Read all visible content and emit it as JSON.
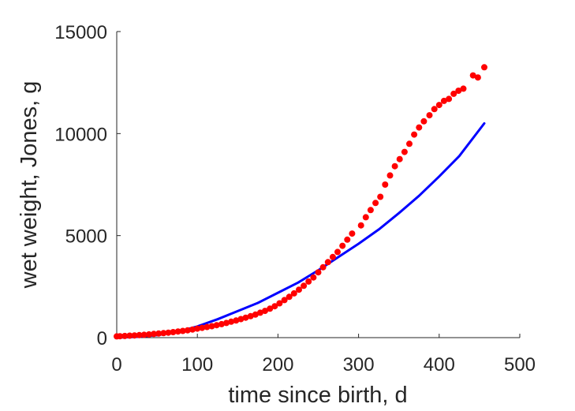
{
  "chart_data": {
    "type": "scatter",
    "title": "",
    "xlabel": "time since birth, d",
    "ylabel": "wet weight, Jones, g",
    "xlim": [
      0,
      500
    ],
    "ylim": [
      0,
      15000
    ],
    "xticks": [
      "0",
      "100",
      "200",
      "300",
      "400",
      "500"
    ],
    "yticks": [
      "0",
      "5000",
      "10000",
      "15000"
    ],
    "grid": false,
    "legend": "none",
    "series": [
      {
        "kind": "points",
        "color": "#ff0000",
        "x": [
          0,
          4,
          10,
          16,
          22,
          28,
          34,
          40,
          46,
          52,
          58,
          64,
          70,
          76,
          82,
          88,
          94,
          100,
          106,
          112,
          118,
          124,
          130,
          136,
          142,
          148,
          154,
          160,
          166,
          172,
          178,
          184,
          190,
          196,
          202,
          208,
          214,
          220,
          226,
          232,
          238,
          244,
          250,
          256,
          262,
          268,
          274,
          280,
          286,
          292,
          303,
          309,
          315,
          321,
          327,
          333,
          339,
          345,
          351,
          357,
          363,
          369,
          375,
          381,
          388,
          394,
          400,
          406,
          412,
          418,
          424,
          430,
          442,
          448,
          456
        ],
        "y": [
          60,
          70,
          80,
          95,
          110,
          125,
          140,
          160,
          180,
          200,
          220,
          245,
          270,
          300,
          330,
          360,
          400,
          440,
          480,
          520,
          560,
          610,
          660,
          720,
          780,
          840,
          910,
          980,
          1050,
          1130,
          1220,
          1310,
          1420,
          1540,
          1680,
          1840,
          2000,
          2170,
          2350,
          2540,
          2750,
          2950,
          3200,
          3450,
          3700,
          3950,
          4200,
          4500,
          4800,
          5100,
          5500,
          5900,
          6250,
          6600,
          6900,
          7500,
          7950,
          8400,
          8750,
          9100,
          9500,
          9950,
          10300,
          10600,
          10900,
          11200,
          11400,
          11600,
          11700,
          11950,
          12100,
          12200,
          12850,
          12750,
          13250
        ]
      },
      {
        "kind": "line",
        "color": "#0000ff",
        "x": [
          0,
          25,
          50,
          75,
          100,
          125,
          150,
          175,
          200,
          225,
          250,
          275,
          300,
          325,
          350,
          375,
          400,
          425,
          456
        ],
        "y": [
          0,
          40,
          120,
          280,
          550,
          900,
          1300,
          1700,
          2200,
          2700,
          3300,
          3950,
          4600,
          5300,
          6100,
          6950,
          7900,
          8900,
          10500
        ]
      }
    ]
  }
}
